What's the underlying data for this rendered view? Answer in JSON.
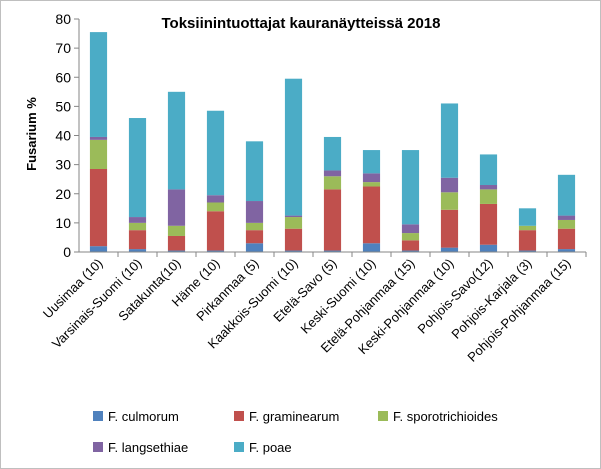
{
  "chart_data": {
    "type": "bar",
    "stacked": true,
    "title": "Toksiinintuottajat kauranäytteissä 2018",
    "xlabel": "",
    "ylabel": "Fusarium %",
    "ylim": [
      0,
      80
    ],
    "yticks": [
      "0",
      "10",
      "20",
      "30",
      "40",
      "50",
      "60",
      "70",
      "80"
    ],
    "grid": false,
    "legend_position": "bottom",
    "categories": [
      "Uusimaa (10)",
      "Varsinais-Suomi (10)",
      "Satakunta(10)",
      "Häme (10)",
      "Pirkanmaa (5)",
      "Kaakkois-Suomi (10)",
      "Etelä-Savo (5)",
      "Keski-Suomi (10)",
      "Etelä-Pohjanmaa (15)",
      "Keski-Pohjanmaa (10)",
      "Pohjois-Savo(12)",
      "Pohjois-Karjala (3)",
      "Pohjois-Pohjanmaa (15)"
    ],
    "series": [
      {
        "name": "F. culmorum",
        "color": "#4f81bd",
        "values": [
          2,
          1,
          0.5,
          0.5,
          3,
          0.5,
          0.5,
          3,
          0.5,
          1.5,
          2.5,
          0.5,
          1
        ]
      },
      {
        "name": "F. graminearum",
        "color": "#c0504d",
        "values": [
          26.5,
          6.5,
          5,
          13.5,
          4.5,
          7.5,
          21,
          19.5,
          3.5,
          13,
          14,
          7,
          7
        ]
      },
      {
        "name": "F. sporotrichioides",
        "color": "#9bbb59",
        "values": [
          10,
          2.5,
          3.5,
          3,
          2.5,
          4,
          4.5,
          1.5,
          2.5,
          6,
          5,
          1.5,
          3
        ]
      },
      {
        "name": "F. langsethiae",
        "color": "#8064a2",
        "values": [
          1,
          2,
          12.5,
          2.5,
          7.5,
          0.5,
          2,
          3,
          3,
          5,
          1.5,
          0,
          1.5
        ]
      },
      {
        "name": "F. poae",
        "color": "#4bacc6",
        "values": [
          36,
          34,
          33.5,
          29,
          20.5,
          47,
          11.5,
          8,
          25.5,
          25.5,
          10.5,
          6,
          14
        ]
      }
    ]
  }
}
